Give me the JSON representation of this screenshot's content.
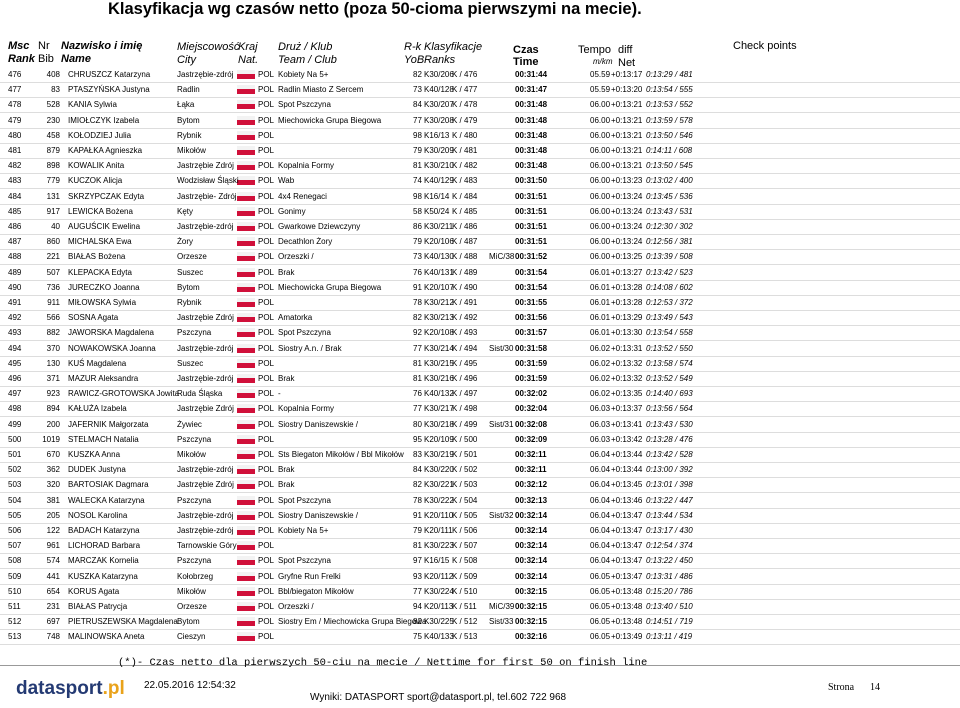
{
  "header": {
    "title": "Klasyfikacja wg czasów netto (poza 50-cioma pierwszymi na mecie).",
    "columns": {
      "msc": "Msc",
      "rank": "Rank",
      "nr": "Nr",
      "bib": "Bib",
      "nazwisko": "Nazwisko i imię",
      "name": "Name",
      "miejscowosc": "Miejscowość",
      "city": "City",
      "kraj": "Kraj",
      "nat": "Nat.",
      "druz": "Druż / Klub",
      "team": "Team / Club",
      "rk": "R-k",
      "klasyfikacje": "Klasyfikacje",
      "yob": "YoB",
      "ranks": "Ranks",
      "czas": "Czas",
      "time": "Time",
      "tempo": "Tempo",
      "mkm": "m/km",
      "diff": "diff",
      "net": "Net",
      "check": "Check points"
    }
  },
  "table": {
    "rows": [
      {
        "msc": "476",
        "nr": "408",
        "name": "CHRUSZCZ Katarzyna",
        "city": "Jastrzębie-zdrój",
        "nat": "POL",
        "club": "Kobiety Na 5+",
        "yob": "82",
        "rk": "K30/206",
        "cls": "K / 476",
        "time": "00:31:44",
        "tempo": "05.59",
        "diff": "+0:13:17",
        "net": "0:13:29 / 481"
      },
      {
        "msc": "477",
        "nr": "83",
        "name": "PTASZYŃSKA Justyna",
        "city": "Radlin",
        "nat": "POL",
        "club": "Radlin Miasto Z Sercem",
        "yob": "73",
        "rk": "K40/128",
        "cls": "K / 477",
        "time": "00:31:47",
        "tempo": "05.59",
        "diff": "+0:13:20",
        "net": "0:13:54 / 555"
      },
      {
        "msc": "478",
        "nr": "528",
        "name": "KANIA Sylwia",
        "city": "Łąka",
        "nat": "POL",
        "club": "Spot Pszczyna",
        "yob": "84",
        "rk": "K30/207",
        "cls": "K / 478",
        "time": "00:31:48",
        "tempo": "06.00",
        "diff": "+0:13:21",
        "net": "0:13:53 / 552"
      },
      {
        "msc": "479",
        "nr": "230",
        "name": "IMIOŁCZYK Izabela",
        "city": "Bytom",
        "nat": "POL",
        "club": "Miechowicka Grupa Biegowa",
        "yob": "77",
        "rk": "K30/208",
        "cls": "K / 479",
        "time": "00:31:48",
        "tempo": "06.00",
        "diff": "+0:13:21",
        "net": "0:13:59 / 578"
      },
      {
        "msc": "480",
        "nr": "458",
        "name": "KOŁODZIEJ Julia",
        "city": "Rybnik",
        "nat": "POL",
        "yob": "98",
        "rk": "K16/13",
        "cls": "K / 480",
        "time": "00:31:48",
        "tempo": "06.00",
        "diff": "+0:13:21",
        "net": "0:13:50 / 546"
      },
      {
        "msc": "481",
        "nr": "879",
        "name": "KAPAŁKA Agnieszka",
        "city": "Mikołów",
        "nat": "POL",
        "yob": "79",
        "rk": "K30/209",
        "cls": "K / 481",
        "time": "00:31:48",
        "tempo": "06.00",
        "diff": "+0:13:21",
        "net": "0:14:11 / 608"
      },
      {
        "msc": "482",
        "nr": "898",
        "name": "KOWALIK Anita",
        "city": "Jastrzębie Zdrój",
        "nat": "POL",
        "club": "Kopalnia Formy",
        "yob": "81",
        "rk": "K30/210",
        "cls": "K / 482",
        "time": "00:31:48",
        "tempo": "06.00",
        "diff": "+0:13:21",
        "net": "0:13:50 / 545"
      },
      {
        "msc": "483",
        "nr": "779",
        "name": "KUCZOK Alicja",
        "city": "Wodzisław Śląski",
        "nat": "POL",
        "club": "Wab",
        "yob": "74",
        "rk": "K40/129",
        "cls": "K / 483",
        "time": "00:31:50",
        "tempo": "06.00",
        "diff": "+0:13:23",
        "net": "0:13:02 / 400"
      },
      {
        "msc": "484",
        "nr": "131",
        "name": "SKRZYPCZAK Edyta",
        "city": "Jastrzębie- Zdrój",
        "nat": "POL",
        "club": "4x4 Renegaci",
        "yob": "98",
        "rk": "K16/14",
        "cls": "K / 484",
        "time": "00:31:51",
        "tempo": "06.00",
        "diff": "+0:13:24",
        "net": "0:13:45 / 536"
      },
      {
        "msc": "485",
        "nr": "917",
        "name": "LEWICKA Bożena",
        "city": "Kęty",
        "nat": "POL",
        "club": "Gonimy",
        "yob": "58",
        "rk": "K50/24",
        "cls": "K / 485",
        "time": "00:31:51",
        "tempo": "06.00",
        "diff": "+0:13:24",
        "net": "0:13:43 / 531"
      },
      {
        "msc": "486",
        "nr": "40",
        "name": "AUGUŚCIK Ewelina",
        "city": "Jastrzębie-zdrój",
        "nat": "POL",
        "club": "Gwarkowe Dziewczyny",
        "yob": "86",
        "rk": "K30/211",
        "cls": "K / 486",
        "time": "00:31:51",
        "tempo": "06.00",
        "diff": "+0:13:24",
        "net": "0:12:30 / 302"
      },
      {
        "msc": "487",
        "nr": "860",
        "name": "MICHALSKA Ewa",
        "city": "Żory",
        "nat": "POL",
        "club": "Decathlon Żory",
        "yob": "79",
        "rk": "K20/106",
        "cls": "K / 487",
        "time": "00:31:51",
        "tempo": "06.00",
        "diff": "+0:13:24",
        "net": "0:12:56 / 381"
      },
      {
        "msc": "488",
        "nr": "221",
        "name": "BIAŁAS Bożena",
        "city": "Orzesze",
        "nat": "POL",
        "club": "Orzeszki /",
        "yob": "73",
        "rk": "K40/130",
        "cls": "K / 488",
        "extra": "MiC/38",
        "time": "00:31:52",
        "tempo": "06.00",
        "diff": "+0:13:25",
        "net": "0:13:39 / 508"
      },
      {
        "msc": "489",
        "nr": "507",
        "name": "KLEPACKA Edyta",
        "city": "Suszec",
        "nat": "POL",
        "club": "Brak",
        "yob": "76",
        "rk": "K40/131",
        "cls": "K / 489",
        "time": "00:31:54",
        "tempo": "06.01",
        "diff": "+0:13:27",
        "net": "0:13:42 / 523"
      },
      {
        "msc": "490",
        "nr": "736",
        "name": "JURECZKO Joanna",
        "city": "Bytom",
        "nat": "POL",
        "club": "Miechowicka Grupa Biegowa",
        "yob": "91",
        "rk": "K20/107",
        "cls": "K / 490",
        "time": "00:31:54",
        "tempo": "06.01",
        "diff": "+0:13:28",
        "net": "0:14:08 / 602"
      },
      {
        "msc": "491",
        "nr": "911",
        "name": "MIŁOWSKA Sylwia",
        "city": "Rybnik",
        "nat": "POL",
        "yob": "78",
        "rk": "K30/212",
        "cls": "K / 491",
        "time": "00:31:55",
        "tempo": "06.01",
        "diff": "+0:13:28",
        "net": "0:12:53 / 372"
      },
      {
        "msc": "492",
        "nr": "566",
        "name": "SOSNA Agata",
        "city": "Jastrzębie Zdrój",
        "nat": "POL",
        "club": "Amatorka",
        "yob": "82",
        "rk": "K30/213",
        "cls": "K / 492",
        "time": "00:31:56",
        "tempo": "06.01",
        "diff": "+0:13:29",
        "net": "0:13:49 / 543"
      },
      {
        "msc": "493",
        "nr": "882",
        "name": "JAWORSKA Magdalena",
        "city": "Pszczyna",
        "nat": "POL",
        "club": "Spot Pszczyna",
        "yob": "92",
        "rk": "K20/108",
        "cls": "K / 493",
        "time": "00:31:57",
        "tempo": "06.01",
        "diff": "+0:13:30",
        "net": "0:13:54 / 558"
      },
      {
        "msc": "494",
        "nr": "370",
        "name": "NOWAKOWSKA Joanna",
        "city": "Jastrzębie-zdrój",
        "nat": "POL",
        "club": "Siostry A.n. / Brak",
        "yob": "77",
        "rk": "K30/214",
        "cls": "K / 494",
        "extra": "Sist/30",
        "time": "00:31:58",
        "tempo": "06.02",
        "diff": "+0:13:31",
        "net": "0:13:52 / 550"
      },
      {
        "msc": "495",
        "nr": "130",
        "name": "KUŚ Magdalena",
        "city": "Suszec",
        "nat": "POL",
        "yob": "81",
        "rk": "K30/215",
        "cls": "K / 495",
        "time": "00:31:59",
        "tempo": "06.02",
        "diff": "+0:13:32",
        "net": "0:13:58 / 574"
      },
      {
        "msc": "496",
        "nr": "371",
        "name": "MAZUR Aleksandra",
        "city": "Jastrzębie-zdrój",
        "nat": "POL",
        "club": "Brak",
        "yob": "81",
        "rk": "K30/216",
        "cls": "K / 496",
        "time": "00:31:59",
        "tempo": "06.02",
        "diff": "+0:13:32",
        "net": "0:13:52 / 549"
      },
      {
        "msc": "497",
        "nr": "923",
        "name": "RAWICZ-GROTOWSKA Jowita",
        "city": "Ruda Śląska",
        "nat": "POL",
        "club": "-",
        "yob": "76",
        "rk": "K40/132",
        "cls": "K / 497",
        "time": "00:32:02",
        "tempo": "06.02",
        "diff": "+0:13:35",
        "net": "0:14:40 / 693"
      },
      {
        "msc": "498",
        "nr": "894",
        "name": "KAŁUŻA Izabela",
        "city": "Jastrzębie Zdrój",
        "nat": "POL",
        "club": "Kopalnia Formy",
        "yob": "77",
        "rk": "K30/217",
        "cls": "K / 498",
        "time": "00:32:04",
        "tempo": "06.03",
        "diff": "+0:13:37",
        "net": "0:13:56 / 564"
      },
      {
        "msc": "499",
        "nr": "200",
        "name": "JAFERNIK Małgorzata",
        "city": "Żywiec",
        "nat": "POL",
        "club": "Siostry Daniszewskie /",
        "yob": "80",
        "rk": "K30/218",
        "cls": "K / 499",
        "extra": "Sist/31",
        "time": "00:32:08",
        "tempo": "06.03",
        "diff": "+0:13:41",
        "net": "0:13:43 / 530"
      },
      {
        "msc": "500",
        "nr": "1019",
        "name": "STELMACH Natalia",
        "city": "Pszczyna",
        "nat": "POL",
        "yob": "95",
        "rk": "K20/109",
        "cls": "K / 500",
        "time": "00:32:09",
        "tempo": "06.03",
        "diff": "+0:13:42",
        "net": "0:13:28 / 476"
      },
      {
        "msc": "501",
        "nr": "670",
        "name": "KUSZKA Anna",
        "city": "Mikołów",
        "nat": "POL",
        "club": "Sts Biegaton Mikołów / Bbl Mikołów",
        "yob": "83",
        "rk": "K30/219",
        "cls": "K / 501",
        "time": "00:32:11",
        "tempo": "06.04",
        "diff": "+0:13:44",
        "net": "0:13:42 / 528"
      },
      {
        "msc": "502",
        "nr": "362",
        "name": "DUDEK Justyna",
        "city": "Jastrzębie-zdrój",
        "nat": "POL",
        "club": "Brak",
        "yob": "84",
        "rk": "K30/220",
        "cls": "K / 502",
        "time": "00:32:11",
        "tempo": "06.04",
        "diff": "+0:13:44",
        "net": "0:13:00 / 392"
      },
      {
        "msc": "503",
        "nr": "320",
        "name": "BARTOSIAK Dagmara",
        "city": "Jastrzębie Zdrój",
        "nat": "POL",
        "club": "Brak",
        "yob": "82",
        "rk": "K30/221",
        "cls": "K / 503",
        "time": "00:32:12",
        "tempo": "06.04",
        "diff": "+0:13:45",
        "net": "0:13:01 / 398"
      },
      {
        "msc": "504",
        "nr": "381",
        "name": "WALECKA Katarzyna",
        "city": "Pszczyna",
        "nat": "POL",
        "club": "Spot Pszczyna",
        "yob": "78",
        "rk": "K30/222",
        "cls": "K / 504",
        "time": "00:32:13",
        "tempo": "06.04",
        "diff": "+0:13:46",
        "net": "0:13:22 / 447"
      },
      {
        "msc": "505",
        "nr": "205",
        "name": "NOSOL Karolina",
        "city": "Jastrzębie-zdrój",
        "nat": "POL",
        "club": "Siostry Daniszewskie /",
        "yob": "91",
        "rk": "K20/110",
        "cls": "K / 505",
        "extra": "Sist/32",
        "time": "00:32:14",
        "tempo": "06.04",
        "diff": "+0:13:47",
        "net": "0:13:44 / 534"
      },
      {
        "msc": "506",
        "nr": "122",
        "name": "BADACH Katarzyna",
        "city": "Jastrzębie-zdrój",
        "nat": "POL",
        "club": "Kobiety Na 5+",
        "yob": "79",
        "rk": "K20/111",
        "cls": "K / 506",
        "time": "00:32:14",
        "tempo": "06.04",
        "diff": "+0:13:47",
        "net": "0:13:17 / 430"
      },
      {
        "msc": "507",
        "nr": "961",
        "name": "LICHORAD Barbara",
        "city": "Tarnowskie Góry",
        "nat": "POL",
        "yob": "81",
        "rk": "K30/223",
        "cls": "K / 507",
        "time": "00:32:14",
        "tempo": "06.04",
        "diff": "+0:13:47",
        "net": "0:12:54 / 374"
      },
      {
        "msc": "508",
        "nr": "574",
        "name": "MARCZAK Kornelia",
        "city": "Pszczyna",
        "nat": "POL",
        "club": "Spot Pszczyna",
        "yob": "97",
        "rk": "K16/15",
        "cls": "K / 508",
        "time": "00:32:14",
        "tempo": "06.04",
        "diff": "+0:13:47",
        "net": "0:13:22 / 450"
      },
      {
        "msc": "509",
        "nr": "441",
        "name": "KUSZKA Katarzyna",
        "city": "Kołobrzeg",
        "nat": "POL",
        "club": "Gryfne Run Frelki",
        "yob": "93",
        "rk": "K20/112",
        "cls": "K / 509",
        "time": "00:32:14",
        "tempo": "06.05",
        "diff": "+0:13:47",
        "net": "0:13:31 / 486"
      },
      {
        "msc": "510",
        "nr": "654",
        "name": "KORUS Agata",
        "city": "Mikołów",
        "nat": "POL",
        "club": "Bbl/biegaton Mikołów",
        "yob": "77",
        "rk": "K30/224",
        "cls": "K / 510",
        "time": "00:32:15",
        "tempo": "06.05",
        "diff": "+0:13:48",
        "net": "0:15:20 / 786"
      },
      {
        "msc": "511",
        "nr": "231",
        "name": "BIAŁAS Patrycja",
        "city": "Orzesze",
        "nat": "POL",
        "club": "Orzeszki /",
        "yob": "94",
        "rk": "K20/113",
        "cls": "K / 511",
        "extra": "MiC/39",
        "time": "00:32:15",
        "tempo": "06.05",
        "diff": "+0:13:48",
        "net": "0:13:40 / 510"
      },
      {
        "msc": "512",
        "nr": "697",
        "name": "PIETRUSZEWSKA Magdalena",
        "city": "Bytom",
        "nat": "POL",
        "club": "Siostry Em / Miechowicka Grupa Biegowa",
        "yob": "82",
        "rk": "K30/225",
        "cls": "K / 512",
        "extra": "Sist/33",
        "time": "00:32:15",
        "tempo": "06.05",
        "diff": "+0:13:48",
        "net": "0:14:51 / 719"
      },
      {
        "msc": "513",
        "nr": "748",
        "name": "MALINOWSKA Aneta",
        "city": "Cieszyn",
        "nat": "POL",
        "yob": "75",
        "rk": "K40/133",
        "cls": "K / 513",
        "time": "00:32:16",
        "tempo": "06.05",
        "diff": "+0:13:49",
        "net": "0:13:11 / 419"
      }
    ]
  },
  "footer": {
    "note": "(*)- Czas netto dla pierwszych 50-ciu na mecie / Nettime for first 50 on finish line",
    "logo_main": "datasport",
    "logo_tld": ".pl",
    "date": "22.05.2016 12:54:32",
    "results": "Wyniki: DATASPORT sport@datasport.pl, tel.602 722 968",
    "page_label": "Strona",
    "page": "14"
  }
}
